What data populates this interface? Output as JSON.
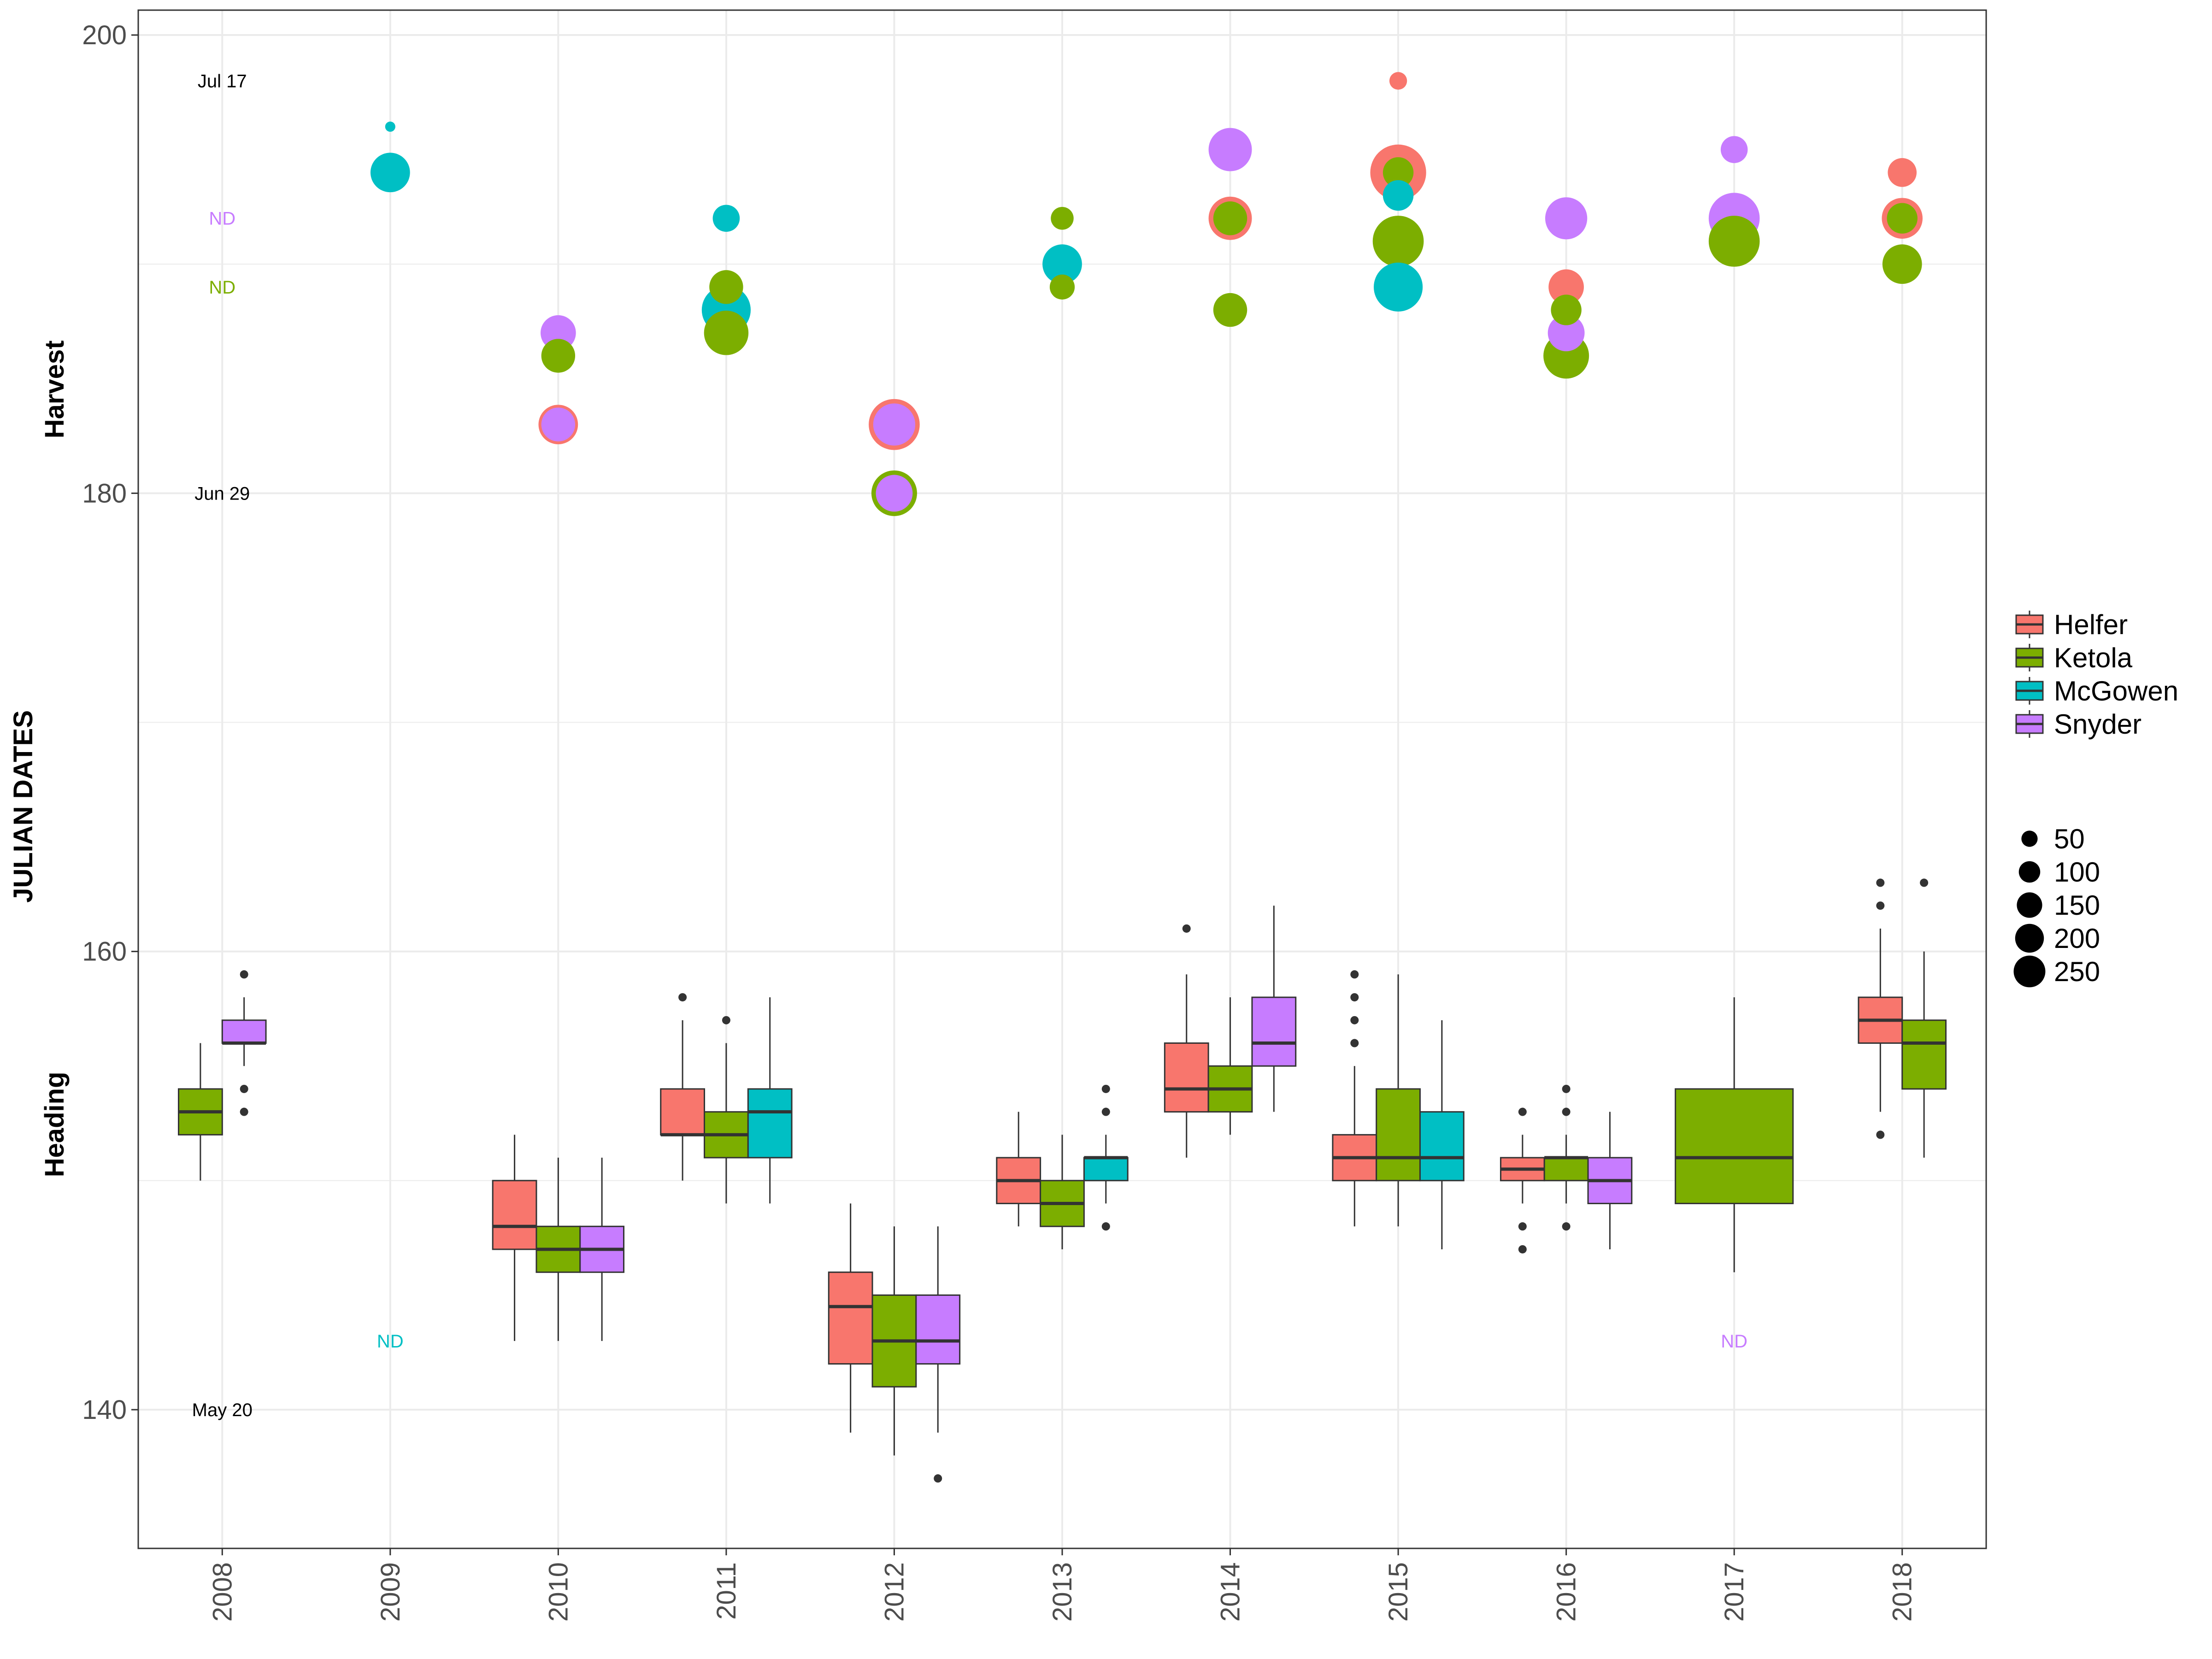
{
  "chart_data": {
    "type": "boxplot+bubble",
    "ylabel": "JULIAN DATES",
    "section_labels": {
      "upper": "Harvest",
      "lower": "Heading"
    },
    "ylim": [
      134,
      201
    ],
    "yticks": [
      "140",
      "160",
      "180",
      "200"
    ],
    "categories": [
      "2008",
      "2009",
      "2010",
      "2011",
      "2012",
      "2013",
      "2014",
      "2015",
      "2016",
      "2017",
      "2018"
    ],
    "colors": {
      "Helfer": "#F8766D",
      "Ketola": "#7CAE00",
      "McGowen": "#00BFC4",
      "Snyder": "#C77CFF"
    },
    "legend_fill": {
      "title": "",
      "entries": [
        "Helfer",
        "Ketola",
        "McGowen",
        "Snyder"
      ]
    },
    "legend_size": {
      "title": "",
      "entries": [
        "50",
        "100",
        "150",
        "200",
        "250"
      ]
    },
    "date_annotations": [
      {
        "text": "Jul 17",
        "year": "2008",
        "y": 198
      },
      {
        "text": "Jun 29",
        "year": "2008",
        "y": 180
      },
      {
        "text": "May 20",
        "year": "2008",
        "y": 140
      }
    ],
    "nd_annotations": [
      {
        "text": "ND",
        "year": "2008",
        "y": 192,
        "series": "Snyder"
      },
      {
        "text": "ND",
        "year": "2008",
        "y": 189,
        "series": "Ketola"
      },
      {
        "text": "ND",
        "year": "2009",
        "y": 143,
        "series": "McGowen"
      },
      {
        "text": "ND",
        "year": "2017",
        "y": 143,
        "series": "Snyder"
      }
    ],
    "heading_boxes": [
      {
        "year": "2008",
        "series": "Ketola",
        "slot": 0,
        "nslots": 2,
        "wmin": 150,
        "q1": 152,
        "median": 153,
        "q3": 154,
        "wmax": 156,
        "outliers": []
      },
      {
        "year": "2008",
        "series": "Snyder",
        "slot": 1,
        "nslots": 2,
        "wmin": 155,
        "q1": 156,
        "median": 156,
        "q3": 157,
        "wmax": 158,
        "outliers": [
          159,
          154,
          153
        ]
      },
      {
        "year": "2010",
        "series": "Helfer",
        "slot": 0,
        "nslots": 3,
        "wmin": 143,
        "q1": 147,
        "median": 148,
        "q3": 150,
        "wmax": 152,
        "outliers": []
      },
      {
        "year": "2010",
        "series": "Ketola",
        "slot": 1,
        "nslots": 3,
        "wmin": 143,
        "q1": 146,
        "median": 147,
        "q3": 148,
        "wmax": 151,
        "outliers": []
      },
      {
        "year": "2010",
        "series": "Snyder",
        "slot": 2,
        "nslots": 3,
        "wmin": 143,
        "q1": 146,
        "median": 147,
        "q3": 148,
        "wmax": 151,
        "outliers": []
      },
      {
        "year": "2011",
        "series": "Helfer",
        "slot": 0,
        "nslots": 3,
        "wmin": 150,
        "q1": 152,
        "median": 152,
        "q3": 154,
        "wmax": 157,
        "outliers": [
          158
        ]
      },
      {
        "year": "2011",
        "series": "Ketola",
        "slot": 1,
        "nslots": 3,
        "wmin": 149,
        "q1": 151,
        "median": 152,
        "q3": 153,
        "wmax": 156,
        "outliers": [
          157
        ]
      },
      {
        "year": "2011",
        "series": "McGowen",
        "slot": 2,
        "nslots": 3,
        "wmin": 149,
        "q1": 151,
        "median": 153,
        "q3": 154,
        "wmax": 158,
        "outliers": []
      },
      {
        "year": "2012",
        "series": "Helfer",
        "slot": 0,
        "nslots": 3,
        "wmin": 139,
        "q1": 142,
        "median": 144.5,
        "q3": 146,
        "wmax": 149,
        "outliers": []
      },
      {
        "year": "2012",
        "series": "Ketola",
        "slot": 1,
        "nslots": 3,
        "wmin": 138,
        "q1": 141,
        "median": 143,
        "q3": 145,
        "wmax": 148,
        "outliers": []
      },
      {
        "year": "2012",
        "series": "Snyder",
        "slot": 2,
        "nslots": 3,
        "wmin": 139,
        "q1": 142,
        "median": 143,
        "q3": 145,
        "wmax": 148,
        "outliers": [
          137
        ]
      },
      {
        "year": "2013",
        "series": "Helfer",
        "slot": 0,
        "nslots": 3,
        "wmin": 148,
        "q1": 149,
        "median": 150,
        "q3": 151,
        "wmax": 153,
        "outliers": []
      },
      {
        "year": "2013",
        "series": "Ketola",
        "slot": 1,
        "nslots": 3,
        "wmin": 147,
        "q1": 148,
        "median": 149,
        "q3": 150,
        "wmax": 152,
        "outliers": []
      },
      {
        "year": "2013",
        "series": "McGowen",
        "slot": 2,
        "nslots": 3,
        "wmin": 149,
        "q1": 150,
        "median": 151,
        "q3": 151,
        "wmax": 152,
        "outliers": [
          154,
          153,
          148
        ]
      },
      {
        "year": "2014",
        "series": "Helfer",
        "slot": 0,
        "nslots": 3,
        "wmin": 151,
        "q1": 153,
        "median": 154,
        "q3": 156,
        "wmax": 159,
        "outliers": [
          161
        ]
      },
      {
        "year": "2014",
        "series": "Ketola",
        "slot": 1,
        "nslots": 3,
        "wmin": 152,
        "q1": 153,
        "median": 154,
        "q3": 155,
        "wmax": 158,
        "outliers": []
      },
      {
        "year": "2014",
        "series": "Snyder",
        "slot": 2,
        "nslots": 3,
        "wmin": 153,
        "q1": 155,
        "median": 156,
        "q3": 158,
        "wmax": 162,
        "outliers": []
      },
      {
        "year": "2015",
        "series": "Helfer",
        "slot": 0,
        "nslots": 3,
        "wmin": 148,
        "q1": 150,
        "median": 151,
        "q3": 152,
        "wmax": 155,
        "outliers": [
          159,
          158,
          157,
          156
        ]
      },
      {
        "year": "2015",
        "series": "Ketola",
        "slot": 1,
        "nslots": 3,
        "wmin": 148,
        "q1": 150,
        "median": 151,
        "q3": 154,
        "wmax": 159,
        "outliers": []
      },
      {
        "year": "2015",
        "series": "McGowen",
        "slot": 2,
        "nslots": 3,
        "wmin": 147,
        "q1": 150,
        "median": 151,
        "q3": 153,
        "wmax": 157,
        "outliers": []
      },
      {
        "year": "2016",
        "series": "Helfer",
        "slot": 0,
        "nslots": 3,
        "wmin": 149,
        "q1": 150,
        "median": 150.5,
        "q3": 151,
        "wmax": 152,
        "outliers": [
          153,
          148,
          147
        ]
      },
      {
        "year": "2016",
        "series": "Ketola",
        "slot": 1,
        "nslots": 3,
        "wmin": 149,
        "q1": 150,
        "median": 151,
        "q3": 151,
        "wmax": 152,
        "outliers": [
          154,
          153,
          148
        ]
      },
      {
        "year": "2016",
        "series": "Snyder",
        "slot": 2,
        "nslots": 3,
        "wmin": 147,
        "q1": 149,
        "median": 150,
        "q3": 151,
        "wmax": 153,
        "outliers": []
      },
      {
        "year": "2017",
        "series": "Ketola",
        "slot": 0,
        "nslots": 1,
        "wmin": 146,
        "q1": 149,
        "median": 151,
        "q3": 154,
        "wmax": 158,
        "outliers": []
      },
      {
        "year": "2018",
        "series": "Helfer",
        "slot": 0,
        "nslots": 2,
        "wmin": 153,
        "q1": 156,
        "median": 157,
        "q3": 158,
        "wmax": 161,
        "outliers": [
          163,
          162,
          152
        ]
      },
      {
        "year": "2018",
        "series": "Ketola",
        "slot": 1,
        "nslots": 2,
        "wmin": 151,
        "q1": 154,
        "median": 156,
        "q3": 157,
        "wmax": 160,
        "outliers": [
          163
        ]
      }
    ],
    "harvest_points": [
      {
        "year": "2009",
        "series": "McGowen",
        "y": 196,
        "size": 10
      },
      {
        "year": "2009",
        "series": "McGowen",
        "y": 194,
        "size": 150
      },
      {
        "year": "2010",
        "series": "Snyder",
        "y": 187,
        "size": 120
      },
      {
        "year": "2010",
        "series": "Ketola",
        "y": 186,
        "size": 110
      },
      {
        "year": "2010",
        "series": "Helfer",
        "y": 183,
        "size": 150
      },
      {
        "year": "2010",
        "series": "Snyder",
        "y": 183,
        "size": 110
      },
      {
        "year": "2011",
        "series": "McGowen",
        "y": 192,
        "size": 70
      },
      {
        "year": "2011",
        "series": "Ketola",
        "y": 189,
        "size": 110
      },
      {
        "year": "2011",
        "series": "McGowen",
        "y": 188,
        "size": 230
      },
      {
        "year": "2011",
        "series": "Ketola",
        "y": 187,
        "size": 190
      },
      {
        "year": "2012",
        "series": "Helfer",
        "y": 183,
        "size": 250
      },
      {
        "year": "2012",
        "series": "Snyder",
        "y": 183,
        "size": 170
      },
      {
        "year": "2012",
        "series": "Ketola",
        "y": 180,
        "size": 200
      },
      {
        "year": "2012",
        "series": "Snyder",
        "y": 180,
        "size": 130
      },
      {
        "year": "2013",
        "series": "Ketola",
        "y": 192,
        "size": 50
      },
      {
        "year": "2013",
        "series": "McGowen",
        "y": 190,
        "size": 150
      },
      {
        "year": "2013",
        "series": "Ketola",
        "y": 189,
        "size": 60
      },
      {
        "year": "2014",
        "series": "Snyder",
        "y": 195,
        "size": 180
      },
      {
        "year": "2014",
        "series": "Helfer",
        "y": 192,
        "size": 180
      },
      {
        "year": "2014",
        "series": "Ketola",
        "y": 192,
        "size": 110
      },
      {
        "year": "2014",
        "series": "Ketola",
        "y": 188,
        "size": 110
      },
      {
        "year": "2015",
        "series": "Helfer",
        "y": 198,
        "size": 30
      },
      {
        "year": "2015",
        "series": "Helfer",
        "y": 194,
        "size": 300
      },
      {
        "year": "2015",
        "series": "Ketola",
        "y": 194,
        "size": 90
      },
      {
        "year": "2015",
        "series": "McGowen",
        "y": 193,
        "size": 90
      },
      {
        "year": "2015",
        "series": "Ketola",
        "y": 191,
        "size": 250
      },
      {
        "year": "2015",
        "series": "McGowen",
        "y": 189,
        "size": 230
      },
      {
        "year": "2016",
        "series": "Snyder",
        "y": 192,
        "size": 170
      },
      {
        "year": "2016",
        "series": "Helfer",
        "y": 189,
        "size": 120
      },
      {
        "year": "2016",
        "series": "Ketola",
        "y": 188,
        "size": 90
      },
      {
        "year": "2016",
        "series": "Snyder",
        "y": 187,
        "size": 130
      },
      {
        "year": "2016",
        "series": "Ketola",
        "y": 186,
        "size": 200
      },
      {
        "year": "2017",
        "series": "Snyder",
        "y": 195,
        "size": 70
      },
      {
        "year": "2017",
        "series": "Snyder",
        "y": 192,
        "size": 250
      },
      {
        "year": "2017",
        "series": "Ketola",
        "y": 191,
        "size": 250
      },
      {
        "year": "2018",
        "series": "Helfer",
        "y": 194,
        "size": 80
      },
      {
        "year": "2018",
        "series": "Helfer",
        "y": 192,
        "size": 160
      },
      {
        "year": "2018",
        "series": "Ketola",
        "y": 192,
        "size": 90
      },
      {
        "year": "2018",
        "series": "Ketola",
        "y": 190,
        "size": 150
      }
    ]
  }
}
